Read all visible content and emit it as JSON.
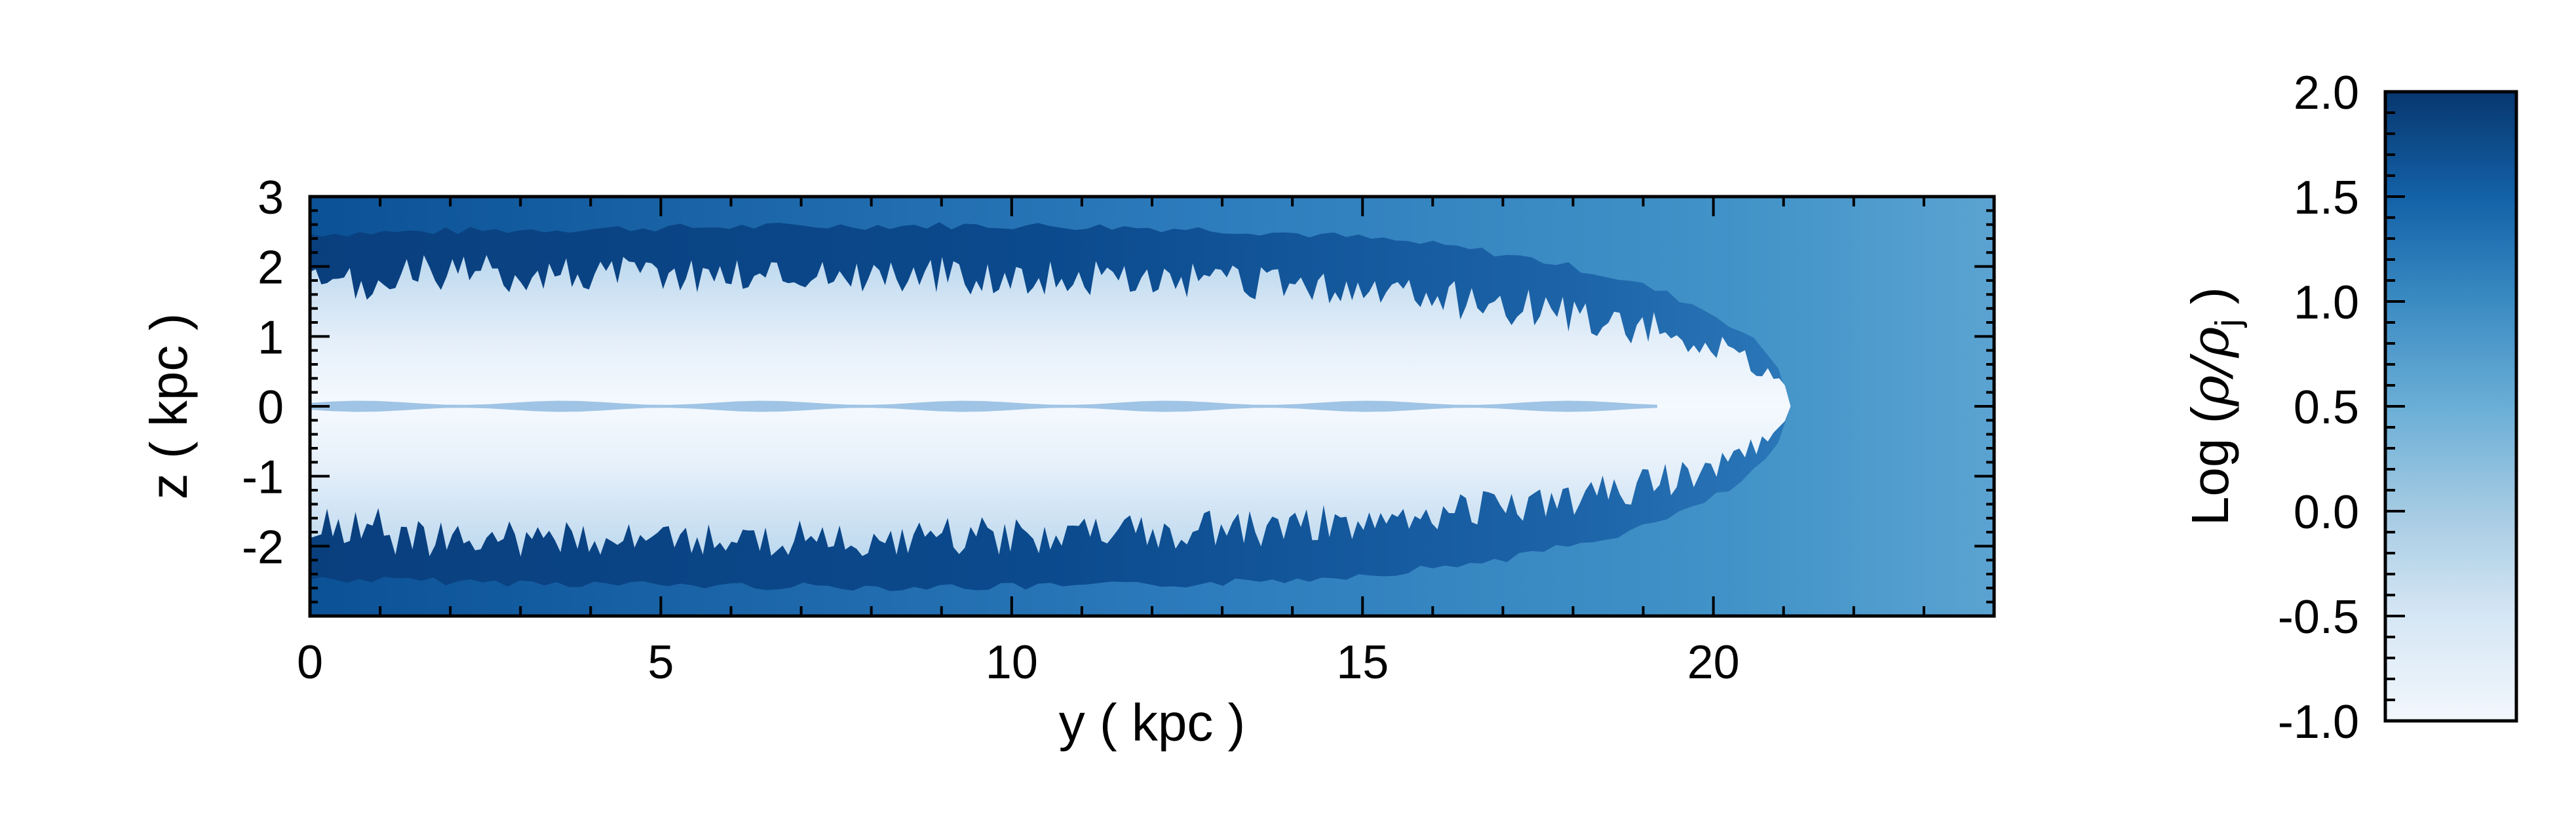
{
  "chart_data": {
    "type": "heatmap",
    "title": "",
    "xlabel": "y ( kpc )",
    "ylabel": "z ( kpc )",
    "xlim": [
      0,
      24
    ],
    "ylim": [
      -3,
      3
    ],
    "x_ticks": [
      0,
      5,
      10,
      15,
      20
    ],
    "x_tick_labels": [
      "0",
      "5",
      "10",
      "15",
      "20"
    ],
    "y_ticks": [
      -2,
      -1,
      0,
      1,
      2,
      3
    ],
    "y_tick_labels": [
      "-2",
      "-1",
      "0",
      "1",
      "2",
      "3"
    ],
    "colorbar": {
      "label_prefix": "Log (",
      "label_math": "ρ/ρ",
      "label_sub": "j",
      "label_suffix": " )",
      "range": [
        -1.0,
        2.0
      ],
      "ticks": [
        -1.0,
        -0.5,
        0.0,
        0.5,
        1.0,
        1.5,
        2.0
      ],
      "tick_labels": [
        "-1.0",
        "-0.5",
        "0.0",
        "0.5",
        "1.0",
        "1.5",
        "2.0"
      ],
      "colormap": "Blues",
      "color_low": "#f2f7fd",
      "color_high": "#07376f"
    },
    "features": {
      "jet_head_y_kpc": 21.1,
      "cocoon_max_half_width_kpc": 2.6,
      "lobe_max_half_width_kpc": 1.9,
      "ambient_log_density": 0.6,
      "shell_log_density": 1.7,
      "lobe_log_density": -0.9
    }
  }
}
